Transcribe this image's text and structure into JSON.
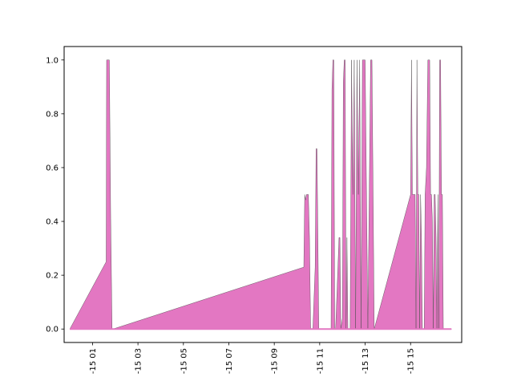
{
  "chart_data": {
    "type": "area",
    "title": "",
    "xlabel": "",
    "ylabel": "",
    "xlim": [
      -0.25,
      17.25
    ],
    "ylim": [
      -0.05,
      1.05
    ],
    "y_ticks": [
      0.0,
      0.2,
      0.4,
      0.6,
      0.8,
      1.0
    ],
    "y_tick_labels": [
      "0.0",
      "0.2",
      "0.4",
      "0.6",
      "0.8",
      "1.0"
    ],
    "x_ticks": [
      1,
      3,
      5,
      7,
      9,
      11,
      13,
      15
    ],
    "x_tick_labels": [
      "-15 01",
      "-15 03",
      "-15 05",
      "-15 07",
      "-15 09",
      "-15 11",
      "-15 13",
      "-15 15"
    ],
    "grid": false,
    "legend": "none",
    "fill_color": "#e377c2",
    "edge_color": "#444444",
    "series": [
      {
        "x": [
          0.0,
          1.6,
          1.62,
          1.68,
          1.74,
          1.8,
          1.86,
          1.9,
          10.3,
          10.34,
          10.38,
          10.42,
          10.46,
          10.5,
          10.55,
          10.6,
          10.65,
          10.7,
          10.8,
          10.84,
          10.88,
          10.92,
          10.96,
          11.5,
          11.54,
          11.58,
          11.62,
          11.66,
          11.7,
          11.85,
          11.89,
          11.93,
          12.0,
          12.04,
          12.08,
          12.12,
          12.16,
          12.2,
          12.24,
          12.28,
          12.34,
          12.4,
          12.46,
          12.52,
          12.58,
          12.64,
          12.7,
          12.76,
          12.82,
          12.88,
          12.94,
          13.0,
          13.06,
          13.12,
          13.18,
          13.24,
          13.3,
          13.4,
          15.0,
          15.04,
          15.08,
          15.2,
          15.24,
          15.28,
          15.32,
          15.36,
          15.4,
          15.44,
          15.48,
          15.52,
          15.56,
          15.6,
          15.64,
          15.7,
          15.76,
          15.8,
          15.84,
          15.88,
          15.92,
          15.96,
          16.0,
          16.04,
          16.08,
          16.12,
          16.16,
          16.2,
          16.24,
          16.28,
          16.32,
          16.36,
          16.4,
          16.44,
          16.5,
          16.54,
          16.58,
          16.62,
          16.66,
          16.7,
          16.74,
          16.8
        ],
        "y": [
          0.0,
          0.25,
          1.0,
          1.0,
          1.0,
          0.41,
          0.0,
          0.0,
          0.23,
          0.5,
          0.48,
          0.5,
          0.5,
          0.5,
          0.34,
          0.0,
          0.0,
          0.0,
          0.23,
          0.67,
          0.67,
          0.34,
          0.0,
          0.0,
          0.89,
          1.0,
          1.0,
          0.0,
          0.0,
          0.34,
          0.34,
          0.0,
          0.04,
          0.92,
          1.0,
          1.0,
          0.0,
          0.34,
          0.0,
          0.0,
          0.0,
          1.0,
          0.5,
          1.0,
          0.0,
          1.0,
          0.5,
          1.0,
          0.0,
          1.0,
          1.0,
          1.0,
          0.5,
          0.0,
          0.5,
          1.0,
          1.0,
          0.0,
          0.5,
          1.0,
          0.5,
          0.5,
          0.0,
          1.0,
          0.5,
          0.5,
          0.0,
          0.5,
          0.34,
          0.0,
          0.0,
          0.0,
          0.5,
          0.6,
          1.0,
          1.0,
          1.0,
          0.5,
          0.5,
          0.4,
          0.0,
          0.5,
          0.5,
          0.34,
          0.0,
          0.5,
          0.0,
          1.0,
          1.0,
          0.5,
          0.5,
          0.0,
          0.0,
          0.0,
          0.0,
          0.0,
          0.0,
          0.0,
          0.0,
          0.0
        ]
      }
    ]
  }
}
